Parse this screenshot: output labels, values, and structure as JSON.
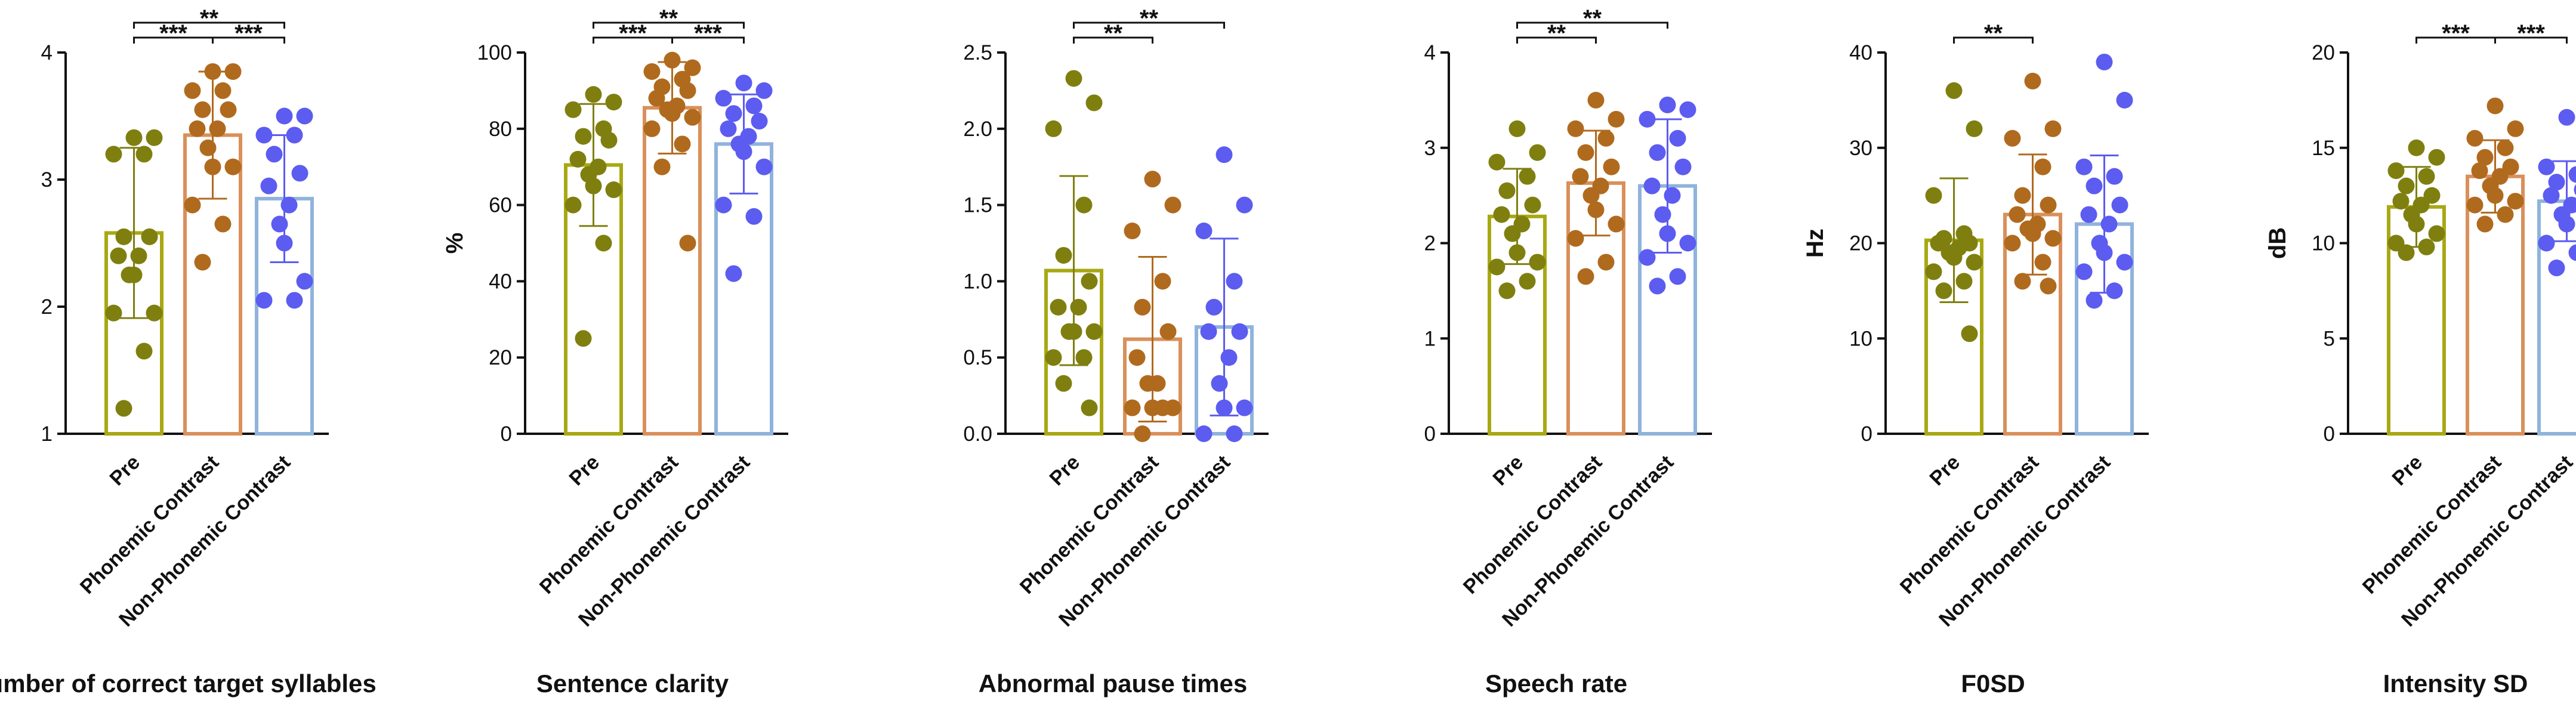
{
  "figure": {
    "categories": [
      "Pre",
      "Phonemic Contrast",
      "Non-Phonemic Contrast"
    ],
    "group_colors": {
      "Pre": "#a8a813",
      "Phonemic Contrast": "#d9905a",
      "Non-Phonemic Contrast": "#8fb3dc"
    },
    "point_colors": {
      "Pre": "#7f7f10",
      "Phonemic Contrast": "#b06a1e",
      "Non-Phonemic Contrast": "#5c5cf0"
    }
  },
  "chart_data": [
    {
      "type": "bar",
      "title": "Number of correct target syllables",
      "ylabel": "",
      "ylim": [
        1,
        4
      ],
      "yticks": [
        1,
        2,
        3,
        4
      ],
      "categories": [
        "Pre",
        "Phonemic Contrast",
        "Non-Phonemic Contrast"
      ],
      "means": [
        2.58,
        3.35,
        2.85
      ],
      "sd": [
        0.67,
        0.5,
        0.5
      ],
      "points": [
        [
          3.33,
          3.33,
          3.2,
          3.2,
          2.55,
          2.55,
          2.4,
          2.4,
          2.25,
          2.25,
          1.95,
          1.95,
          1.65,
          1.2
        ],
        [
          3.85,
          3.85,
          3.7,
          3.7,
          3.55,
          3.55,
          3.4,
          3.4,
          3.25,
          3.1,
          3.1,
          2.8,
          2.65,
          2.35
        ],
        [
          3.5,
          3.5,
          3.35,
          3.35,
          3.2,
          3.05,
          2.95,
          2.8,
          2.65,
          2.5,
          2.2,
          2.05,
          2.05
        ]
      ],
      "significance": [
        {
          "from": 0,
          "to": 1,
          "label": "***",
          "level": 0
        },
        {
          "from": 1,
          "to": 2,
          "label": "***",
          "level": 0
        },
        {
          "from": 0,
          "to": 2,
          "label": "**",
          "level": 1
        }
      ]
    },
    {
      "type": "bar",
      "title": "Sentence clarity",
      "ylabel": "%",
      "ylim": [
        0,
        100
      ],
      "yticks": [
        0,
        20,
        40,
        60,
        80,
        100
      ],
      "categories": [
        "Pre",
        "Phonemic Contrast",
        "Non-Phonemic Contrast"
      ],
      "means": [
        70.5,
        85.5,
        76
      ],
      "sd": [
        16,
        12,
        13
      ],
      "points": [
        [
          89,
          87,
          85,
          80,
          78,
          77,
          72,
          70,
          68,
          65,
          64,
          60,
          50,
          25
        ],
        [
          98,
          96,
          95,
          93,
          91,
          90,
          88,
          86,
          85,
          84,
          83,
          80,
          76,
          70,
          50
        ],
        [
          92,
          90,
          88,
          86,
          84,
          82,
          80,
          78,
          76,
          74,
          70,
          60,
          57,
          42
        ]
      ],
      "significance": [
        {
          "from": 0,
          "to": 1,
          "label": "***",
          "level": 0
        },
        {
          "from": 1,
          "to": 2,
          "label": "***",
          "level": 0
        },
        {
          "from": 0,
          "to": 2,
          "label": "**",
          "level": 1
        }
      ]
    },
    {
      "type": "bar",
      "title": "Abnormal pause times",
      "ylabel": "",
      "ylim": [
        0,
        2.5
      ],
      "yticks": [
        0.0,
        0.5,
        1.0,
        1.5,
        2.0,
        2.5
      ],
      "ytick_labels": [
        "0.0",
        "0.5",
        "1.0",
        "1.5",
        "2.0",
        "2.5"
      ],
      "categories": [
        "Pre",
        "Phonemic Contrast",
        "Non-Phonemic Contrast"
      ],
      "means": [
        1.07,
        0.62,
        0.7
      ],
      "sd": [
        0.62,
        0.54,
        0.58
      ],
      "points": [
        [
          2.33,
          2.17,
          2.0,
          1.5,
          1.17,
          1.0,
          0.83,
          0.83,
          0.67,
          0.67,
          0.67,
          0.5,
          0.5,
          0.33,
          0.17
        ],
        [
          1.67,
          1.5,
          1.33,
          1.0,
          0.83,
          0.67,
          0.5,
          0.33,
          0.33,
          0.17,
          0.17,
          0.17,
          0.17,
          0.0
        ],
        [
          1.83,
          1.5,
          1.33,
          1.0,
          0.83,
          0.67,
          0.67,
          0.5,
          0.33,
          0.17,
          0.17,
          0.0,
          0.0
        ]
      ],
      "significance": [
        {
          "from": 0,
          "to": 1,
          "label": "**",
          "level": 0
        },
        {
          "from": 0,
          "to": 2,
          "label": "**",
          "level": 1
        }
      ]
    },
    {
      "type": "bar",
      "title": "Speech rate",
      "ylabel": "",
      "ylim": [
        0,
        4
      ],
      "yticks": [
        0,
        1,
        2,
        3,
        4
      ],
      "categories": [
        "Pre",
        "Phonemic Contrast",
        "Non-Phonemic Contrast"
      ],
      "means": [
        2.28,
        2.63,
        2.6
      ],
      "sd": [
        0.5,
        0.55,
        0.7
      ],
      "points": [
        [
          3.2,
          2.95,
          2.85,
          2.7,
          2.55,
          2.4,
          2.3,
          2.2,
          2.1,
          1.9,
          1.8,
          1.75,
          1.6,
          1.5
        ],
        [
          3.5,
          3.3,
          3.2,
          3.1,
          2.95,
          2.8,
          2.7,
          2.6,
          2.5,
          2.35,
          2.2,
          2.05,
          1.8,
          1.65
        ],
        [
          3.45,
          3.4,
          3.3,
          3.1,
          2.95,
          2.8,
          2.6,
          2.5,
          2.3,
          2.1,
          2.0,
          1.85,
          1.65,
          1.55
        ]
      ],
      "significance": [
        {
          "from": 0,
          "to": 1,
          "label": "**",
          "level": 0
        },
        {
          "from": 0,
          "to": 2,
          "label": "**",
          "level": 1
        }
      ]
    },
    {
      "type": "bar",
      "title": "F0SD",
      "ylabel": "Hz",
      "ylim": [
        0,
        40
      ],
      "yticks": [
        0,
        10,
        20,
        30,
        40
      ],
      "categories": [
        "Pre",
        "Phonemic Contrast",
        "Non-Phonemic Contrast"
      ],
      "means": [
        20.3,
        23,
        22
      ],
      "sd": [
        6.5,
        6.3,
        7.2
      ],
      "points": [
        [
          36,
          32,
          25,
          21,
          20.5,
          20,
          20,
          19.5,
          19,
          18.5,
          18,
          17,
          16,
          15,
          10.5
        ],
        [
          37,
          32,
          31,
          28,
          25,
          24,
          23,
          22,
          21.5,
          21,
          20.5,
          20,
          18,
          16,
          15.5
        ],
        [
          39,
          35,
          28,
          27,
          26,
          24,
          23,
          22,
          20,
          19,
          18,
          17,
          15,
          14
        ]
      ],
      "significance": [
        {
          "from": 0,
          "to": 1,
          "label": "**",
          "level": 0
        }
      ]
    },
    {
      "type": "bar",
      "title": "Intensity SD",
      "ylabel": "dB",
      "ylim": [
        0,
        20
      ],
      "yticks": [
        0,
        5,
        10,
        15,
        20
      ],
      "categories": [
        "Pre",
        "Phonemic Contrast",
        "Non-Phonemic Contrast"
      ],
      "means": [
        11.9,
        13.5,
        12.2
      ],
      "sd": [
        2.1,
        1.9,
        2.1
      ],
      "points": [
        [
          15,
          14.5,
          13.8,
          13.5,
          13,
          12.5,
          12.2,
          12,
          11.5,
          11,
          10.5,
          10,
          9.8,
          9.5
        ],
        [
          17.2,
          16,
          15.5,
          15,
          14.5,
          14,
          13.8,
          13.5,
          13,
          12.5,
          12.2,
          12,
          11.5,
          11
        ],
        [
          16.6,
          14.5,
          14,
          13.6,
          13.2,
          12.8,
          12.5,
          12,
          11.5,
          11,
          10.5,
          10,
          9.5,
          8.7
        ]
      ],
      "significance": [
        {
          "from": 0,
          "to": 1,
          "label": "***",
          "level": 0
        },
        {
          "from": 1,
          "to": 2,
          "label": "***",
          "level": 0
        }
      ]
    }
  ]
}
